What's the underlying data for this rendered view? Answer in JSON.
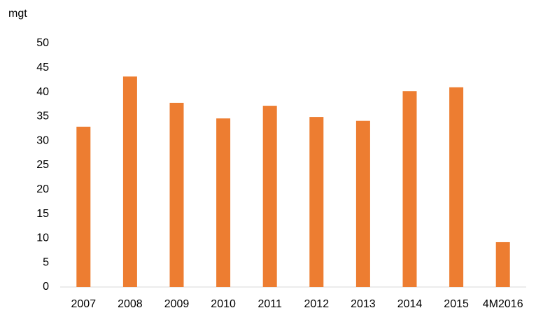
{
  "chart_data": {
    "type": "bar",
    "y_label": "mgt",
    "categories": [
      "2007",
      "2008",
      "2009",
      "2010",
      "2011",
      "2012",
      "2013",
      "2014",
      "2015",
      "4M2016"
    ],
    "values": [
      32.9,
      43.2,
      37.8,
      34.6,
      37.2,
      34.9,
      34.1,
      40.2,
      41.0,
      9.2
    ],
    "color": "#ed7d31",
    "ylim": [
      0,
      50
    ],
    "yticks": [
      0,
      5,
      10,
      15,
      20,
      25,
      30,
      35,
      40,
      45,
      50
    ],
    "grid": false
  }
}
